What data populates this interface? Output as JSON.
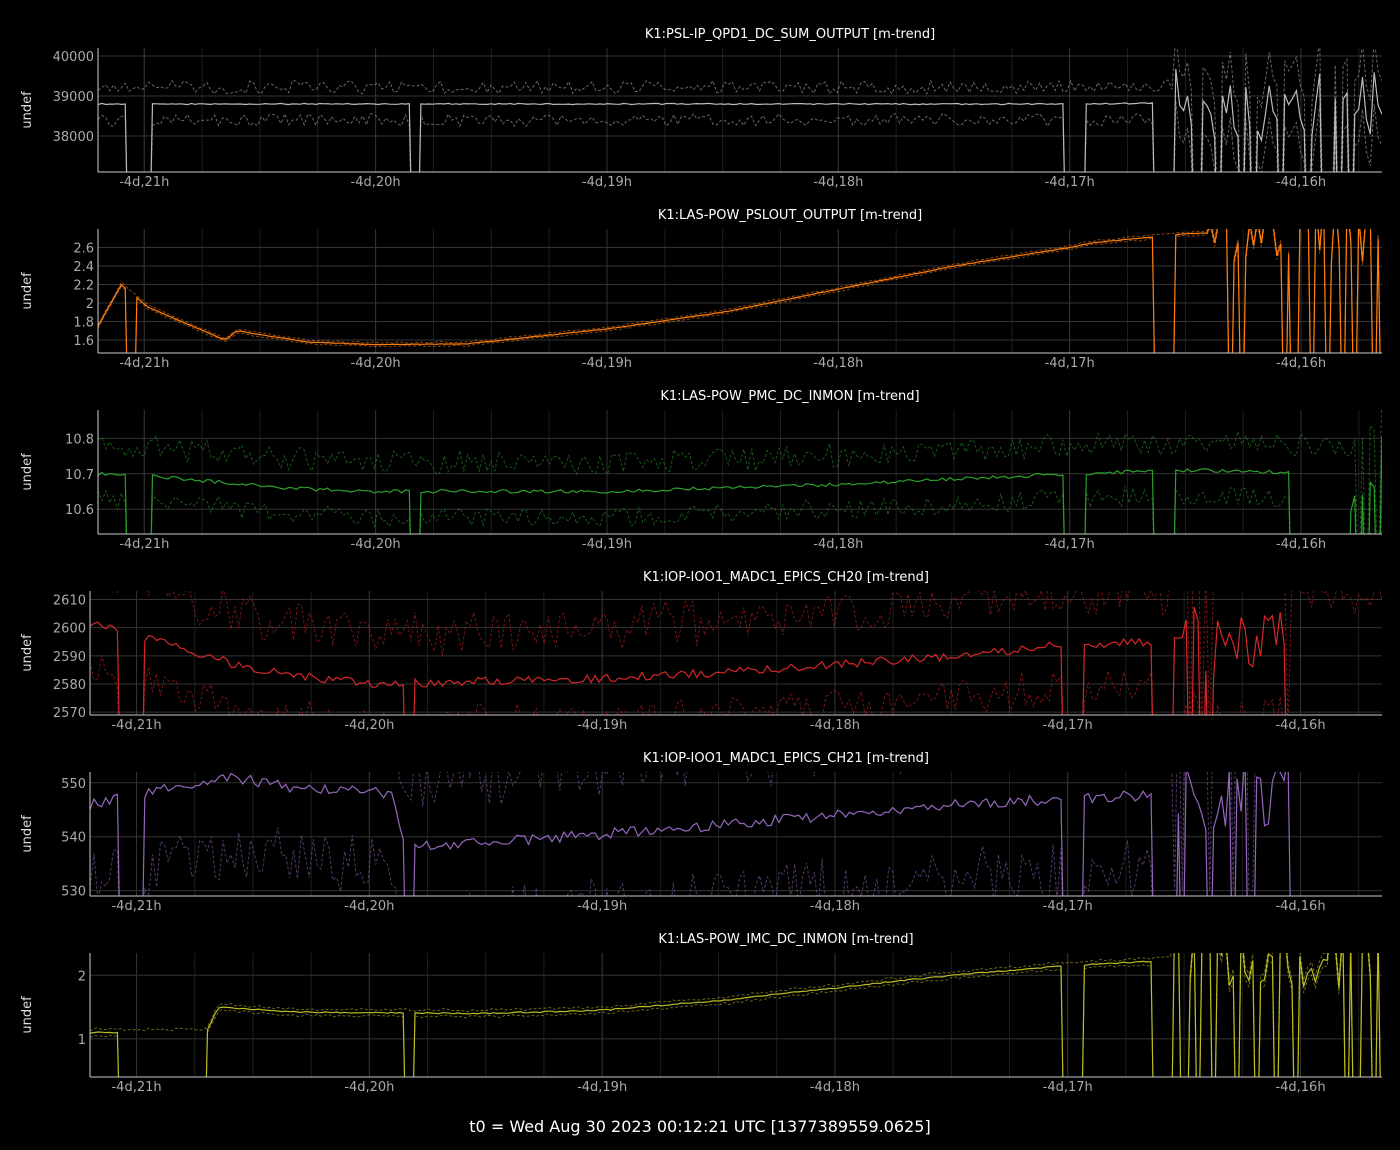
{
  "footer": "t0 = Wed Aug 30 2023 00:12:21 UTC [1377389559.0625]",
  "chart_data": [
    {
      "type": "line",
      "title": "K1:PSL-IP_QPD1_DC_SUM_OUTPUT [m-trend]",
      "ylabel": "undef",
      "xlim": [
        -21.2,
        -15.65
      ],
      "ylim": [
        37100,
        40200
      ],
      "yticks": [
        38000,
        39000,
        40000
      ],
      "ytick_labels": [
        "38000",
        "39000",
        "40000"
      ],
      "color": "#bbbbbb",
      "mean_level": [
        [
          -21.2,
          38800
        ],
        [
          -17.0,
          38800
        ],
        [
          -16.6,
          38820
        ],
        [
          -15.65,
          38800
        ]
      ],
      "max_offset": 420,
      "min_offset": 400,
      "noise": 30,
      "dropouts": [
        [
          -21.08,
          -20.98
        ],
        [
          -19.85,
          -19.82
        ],
        [
          -17.02,
          -16.93
        ],
        [
          -16.63,
          -16.55
        ]
      ],
      "noisy_start": -16.6
    },
    {
      "type": "line",
      "title": "K1:LAS-POW_PSLOUT_OUTPUT [m-trend]",
      "ylabel": "undef",
      "xlim": [
        -21.2,
        -15.65
      ],
      "ylim": [
        1.46,
        2.8
      ],
      "yticks": [
        1.6,
        1.8,
        2.0,
        2.2,
        2.4,
        2.6
      ],
      "ytick_labels": [
        "1.6",
        "1.8",
        "2",
        "2.2",
        "2.4",
        "2.6"
      ],
      "color": "#ff7f0e",
      "mean_level": [
        [
          -21.2,
          1.75
        ],
        [
          -21.1,
          2.2
        ],
        [
          -20.98,
          1.95
        ],
        [
          -20.65,
          1.6
        ],
        [
          -20.6,
          1.7
        ],
        [
          -20.3,
          1.58
        ],
        [
          -20.0,
          1.55
        ],
        [
          -19.6,
          1.56
        ],
        [
          -19.0,
          1.72
        ],
        [
          -18.5,
          1.9
        ],
        [
          -18.0,
          2.15
        ],
        [
          -17.5,
          2.4
        ],
        [
          -17.0,
          2.6
        ],
        [
          -16.9,
          2.65
        ],
        [
          -16.5,
          2.75
        ],
        [
          -15.65,
          2.8
        ]
      ],
      "max_offset": 0.02,
      "min_offset": 0.02,
      "noise": 0.005,
      "dropouts": [
        [
          -21.08,
          -21.04
        ],
        [
          -16.63,
          -16.55
        ]
      ],
      "noisy_start": -16.4
    },
    {
      "type": "line",
      "title": "K1:LAS-POW_PMC_DC_INMON [m-trend]",
      "ylabel": "undef",
      "xlim": [
        -21.2,
        -15.65
      ],
      "ylim": [
        10.53,
        10.88
      ],
      "yticks": [
        10.6,
        10.7,
        10.8
      ],
      "ytick_labels": [
        "10.6",
        "10.7",
        "10.8"
      ],
      "color": "#2ca02c",
      "mean_level": [
        [
          -21.2,
          10.7
        ],
        [
          -20.9,
          10.69
        ],
        [
          -20.4,
          10.66
        ],
        [
          -20.0,
          10.65
        ],
        [
          -19.0,
          10.65
        ],
        [
          -18.0,
          10.67
        ],
        [
          -17.0,
          10.7
        ],
        [
          -16.5,
          10.71
        ],
        [
          -15.65,
          10.7
        ]
      ],
      "max_offset": 0.08,
      "min_offset": 0.07,
      "noise": 0.01,
      "dropouts": [
        [
          -21.08,
          -20.98
        ],
        [
          -19.85,
          -19.82
        ],
        [
          -17.02,
          -16.93
        ],
        [
          -16.63,
          -16.55
        ],
        [
          -16.05,
          -15.8
        ]
      ],
      "noisy_start": -16.0
    },
    {
      "type": "line",
      "title": "K1:IOP-IOO1_MADC1_EPICS_CH20 [m-trend]",
      "ylabel": "undef",
      "xlim": [
        -21.2,
        -15.65
      ],
      "ylim": [
        2569,
        2613
      ],
      "yticks": [
        2570,
        2580,
        2590,
        2600,
        2610
      ],
      "ytick_labels": [
        "2570",
        "2580",
        "2590",
        "2600",
        "2610"
      ],
      "color": "#d62728",
      "mean_level": [
        [
          -21.2,
          2602
        ],
        [
          -20.9,
          2595
        ],
        [
          -20.5,
          2585
        ],
        [
          -20.0,
          2580
        ],
        [
          -19.0,
          2582
        ],
        [
          -18.5,
          2584
        ],
        [
          -17.5,
          2590
        ],
        [
          -17.0,
          2594
        ],
        [
          -16.5,
          2595
        ],
        [
          -15.65,
          2595
        ]
      ],
      "max_offset": 18,
      "min_offset": 15,
      "noise": 3,
      "dropouts": [
        [
          -21.08,
          -20.98
        ],
        [
          -19.85,
          -19.82
        ],
        [
          -17.02,
          -16.93
        ],
        [
          -16.63,
          -16.55
        ],
        [
          -16.05,
          -15.65
        ]
      ],
      "noisy_start": -16.6
    },
    {
      "type": "line",
      "title": "K1:IOP-IOO1_MADC1_EPICS_CH21 [m-trend]",
      "ylabel": "undef",
      "xlim": [
        -21.2,
        -15.65
      ],
      "ylim": [
        529,
        552
      ],
      "yticks": [
        530,
        540,
        550
      ],
      "ytick_labels": [
        "530",
        "540",
        "550"
      ],
      "color": "#9467bd",
      "mean_level": [
        [
          -21.2,
          546
        ],
        [
          -20.6,
          551
        ],
        [
          -20.3,
          549
        ],
        [
          -19.9,
          548
        ],
        [
          -19.85,
          538
        ],
        [
          -19.5,
          539
        ],
        [
          -18.5,
          542
        ],
        [
          -17.5,
          546
        ],
        [
          -17.0,
          547
        ],
        [
          -16.5,
          548
        ],
        [
          -15.65,
          547
        ]
      ],
      "max_offset": 12,
      "min_offset": 14,
      "noise": 2,
      "dropouts": [
        [
          -21.08,
          -20.98
        ],
        [
          -19.85,
          -19.82
        ],
        [
          -17.02,
          -16.93
        ],
        [
          -16.63,
          -16.55
        ],
        [
          -16.05,
          -15.65
        ]
      ],
      "noisy_start": -16.6
    },
    {
      "type": "line",
      "title": "K1:LAS-POW_IMC_DC_INMON [m-trend]",
      "ylabel": "undef",
      "xlim": [
        -21.2,
        -15.65
      ],
      "ylim": [
        0.4,
        2.35
      ],
      "yticks": [
        1,
        2
      ],
      "ytick_labels": [
        "1",
        "2"
      ],
      "color": "#bcbd22",
      "mean_level": [
        [
          -21.2,
          1.1
        ],
        [
          -20.7,
          1.1
        ],
        [
          -20.65,
          1.5
        ],
        [
          -20.3,
          1.42
        ],
        [
          -19.5,
          1.4
        ],
        [
          -19.0,
          1.45
        ],
        [
          -18.5,
          1.6
        ],
        [
          -18.0,
          1.8
        ],
        [
          -17.5,
          2.0
        ],
        [
          -17.0,
          2.15
        ],
        [
          -16.5,
          2.25
        ],
        [
          -15.65,
          2.3
        ]
      ],
      "max_offset": 0.05,
      "min_offset": 0.05,
      "noise": 0.02,
      "dropouts": [
        [
          -21.08,
          -20.7
        ],
        [
          -19.85,
          -19.82
        ],
        [
          -17.02,
          -16.93
        ],
        [
          -16.63,
          -16.55
        ]
      ],
      "noisy_start": -16.6
    }
  ],
  "shared_xticks": [
    -21,
    -20,
    -19,
    -18,
    -17,
    -16
  ],
  "shared_xtick_labels": [
    "-4d,21h",
    "-4d,20h",
    "-4d,19h",
    "-4d,18h",
    "-4d,17h",
    "-4d,16h"
  ]
}
